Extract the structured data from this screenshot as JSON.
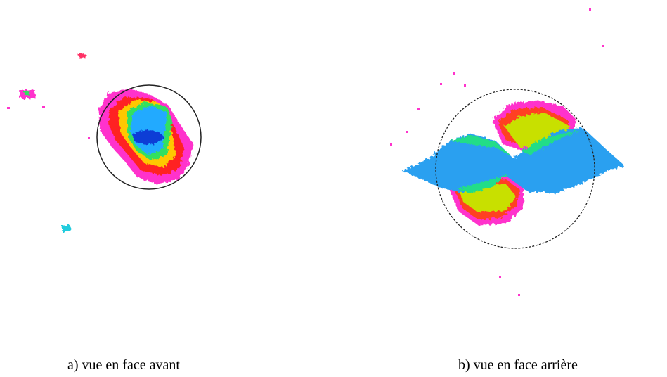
{
  "panels": [
    {
      "caption": "a) vue en face avant"
    },
    {
      "caption": "b) vue en face arrière"
    }
  ]
}
